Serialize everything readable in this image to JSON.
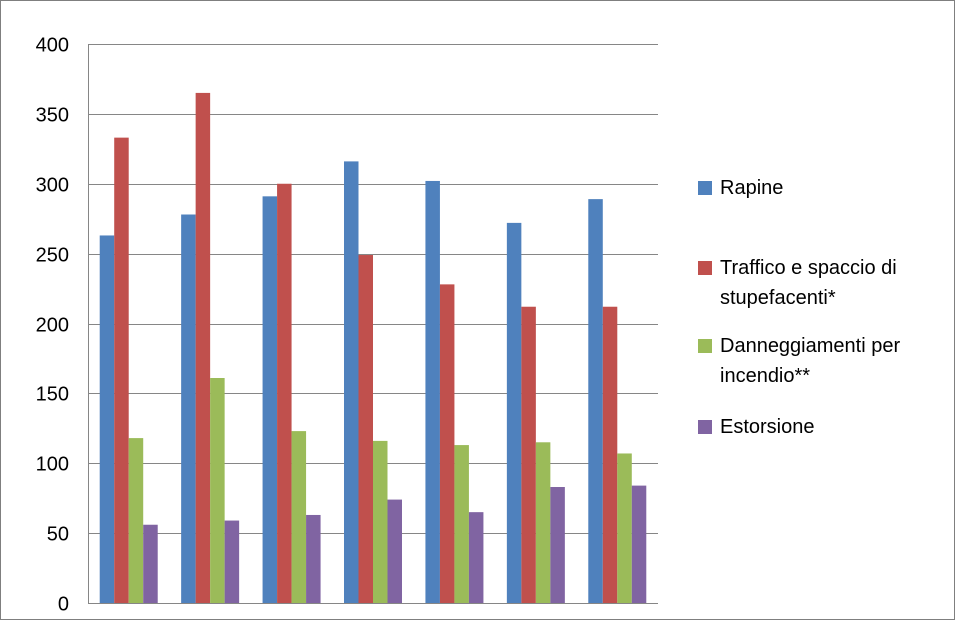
{
  "chart_data": {
    "type": "bar",
    "categories": [
      "",
      "",
      "",
      "",
      "",
      "",
      ""
    ],
    "series": [
      {
        "name": "Rapine",
        "color": "#4F81BD",
        "values": [
          263,
          278,
          291,
          316,
          302,
          272,
          289
        ]
      },
      {
        "name": "Traffico e spaccio di stupefacenti*",
        "color": "#C0504D",
        "values": [
          333,
          365,
          300,
          249,
          228,
          212,
          212
        ]
      },
      {
        "name": "Danneggiamenti per incendio**",
        "color": "#9BBB59",
        "values": [
          118,
          161,
          123,
          116,
          113,
          115,
          107
        ]
      },
      {
        "name": "Estorsione",
        "color": "#8064A2",
        "values": [
          56,
          59,
          63,
          74,
          65,
          83,
          84
        ]
      }
    ],
    "y_ticks": [
      "0",
      "50",
      "100",
      "150",
      "200",
      "250",
      "300",
      "350",
      "400"
    ],
    "ylim": [
      0,
      400
    ],
    "grid": true,
    "legend_position": "right",
    "title": "",
    "xlabel": "",
    "ylabel": ""
  }
}
